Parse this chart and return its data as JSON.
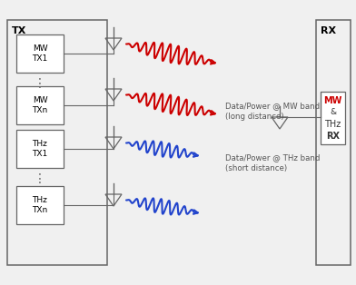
{
  "bg_color": "#f0f0f0",
  "box_edge": "#999999",
  "tx_label": "TX",
  "rx_label": "RX",
  "mw_tx_labels": [
    "MW\nTX1",
    "MW\nTXn"
  ],
  "thz_tx_labels": [
    "THz\nTX1",
    "THz\nTXn"
  ],
  "rx_box_lines": [
    "MW",
    "&",
    "THz",
    "RX"
  ],
  "rx_box_colors": [
    "#cc0000",
    "#333333",
    "#333333",
    "#333333"
  ],
  "mw_color": "#cc0000",
  "thz_color": "#2244cc",
  "annotation_mw": "Data/Power @ MW band\n(long distance)",
  "annotation_thz": "Data/Power @ THz band\n(short distance)",
  "line_color": "#666666"
}
